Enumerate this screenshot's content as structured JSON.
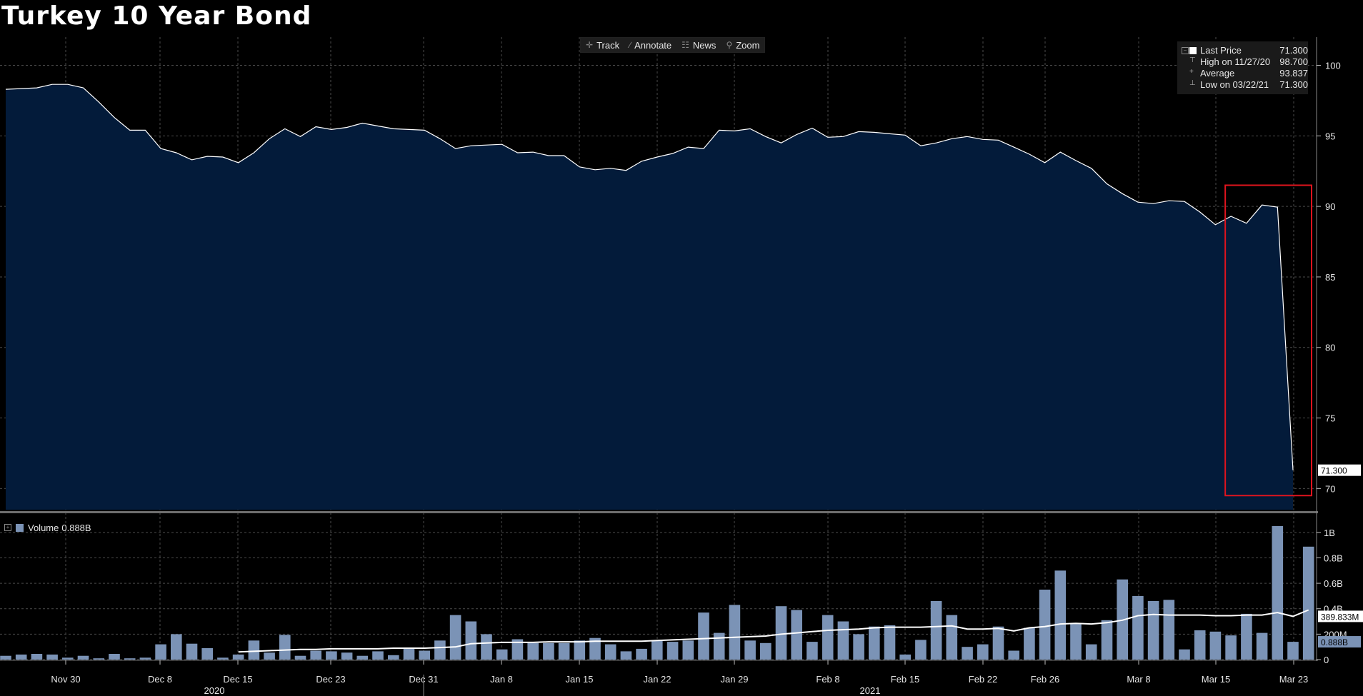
{
  "title": "Turkey 10 Year Bond",
  "toolbar": [
    {
      "label": "Track",
      "icon": "crosshair-icon",
      "glyph": "✛"
    },
    {
      "label": "Annotate",
      "icon": "pencil-icon",
      "glyph": "∕"
    },
    {
      "label": "News",
      "icon": "news-icon",
      "glyph": "☷"
    },
    {
      "label": "Zoom",
      "icon": "magnifier-icon",
      "glyph": "⚲"
    }
  ],
  "legend": {
    "last_price_label": "Last Price",
    "last_price_value": "71.300",
    "high_label": "High on 11/27/20",
    "high_value": "98.700",
    "average_label": "Average",
    "average_value": "93.837",
    "low_label": "Low on 03/22/21",
    "low_value": "71.300"
  },
  "volume_legend": {
    "label": "Volume",
    "value": "0.888B"
  },
  "colors": {
    "area_fill": "#031b3a",
    "line": "#ffffff",
    "volume_bar": "#7b93b6",
    "highlight_box": "#e0141e",
    "grid": "#4a4a4a"
  },
  "chart_data": [
    {
      "type": "area",
      "title": "Turkey 10 Year Bond",
      "series": [
        {
          "values": [
            98.3,
            98.35,
            98.4,
            98.65,
            98.65,
            98.4,
            97.4,
            96.3,
            95.4,
            95.4,
            94.1,
            93.8,
            93.3,
            93.55,
            93.5,
            93.1,
            93.8,
            94.8,
            95.5,
            94.95,
            95.65,
            95.45,
            95.6,
            95.9,
            95.7,
            95.5,
            95.45,
            95.4,
            94.8,
            94.1,
            94.3,
            94.35,
            94.4,
            93.8,
            93.85,
            93.6,
            93.6,
            92.8,
            92.6,
            92.7,
            92.55,
            93.2,
            93.5,
            93.75,
            94.2,
            94.1,
            95.4,
            95.35,
            95.5,
            94.95,
            94.5,
            95.1,
            95.55,
            94.9,
            94.95,
            95.3,
            95.25,
            95.15,
            95.05,
            94.3,
            94.5,
            94.8,
            94.95,
            94.75,
            94.7,
            94.2,
            93.7,
            93.1,
            93.85,
            93.25,
            92.7,
            91.6,
            90.9,
            90.3,
            90.2,
            90.4,
            90.35,
            89.6,
            88.7,
            89.3,
            88.8,
            90.1,
            89.95,
            71.3
          ]
        }
      ],
      "x_tick_labels": [
        "Nov 30",
        "Dec 8",
        "Dec 15",
        "Dec 23",
        "Dec 31",
        "Jan 8",
        "Jan 15",
        "Jan 22",
        "Jan 29",
        "Feb 8",
        "Feb 15",
        "Feb 22",
        "Feb 26",
        "Mar 8",
        "Mar 15",
        "Mar 23"
      ],
      "x_year_labels": [
        "2020",
        "2021"
      ],
      "y_ticks": [
        70,
        75,
        80,
        85,
        90,
        95,
        100
      ],
      "ylim": [
        68.5,
        102
      ],
      "last_value_label": "71.300",
      "highlight_range": {
        "from_index": 79,
        "to_index": 83,
        "ymin": 69.5,
        "ymax": 91.5
      },
      "legend_position": "top-right",
      "grid": true
    },
    {
      "type": "bar",
      "title": "Volume",
      "series": [
        {
          "name": "Volume",
          "values": [
            0.03,
            0.04,
            0.045,
            0.04,
            0.015,
            0.03,
            0.01,
            0.045,
            0.01,
            0.015,
            0.12,
            0.2,
            0.125,
            0.09,
            0.015,
            0.04,
            0.15,
            0.055,
            0.195,
            0.03,
            0.07,
            0.065,
            0.055,
            0.03,
            0.065,
            0.035,
            0.085,
            0.07,
            0.15,
            0.35,
            0.3,
            0.2,
            0.08,
            0.16,
            0.13,
            0.13,
            0.13,
            0.15,
            0.17,
            0.12,
            0.065,
            0.085,
            0.15,
            0.14,
            0.15,
            0.37,
            0.21,
            0.43,
            0.15,
            0.13,
            0.42,
            0.39,
            0.14,
            0.35,
            0.3,
            0.2,
            0.26,
            0.27,
            0.04,
            0.155,
            0.46,
            0.35,
            0.1,
            0.12,
            0.26,
            0.07,
            0.25,
            0.55,
            0.7,
            0.28,
            0.12,
            0.31,
            0.63,
            0.5,
            0.46,
            0.47,
            0.08,
            0.23,
            0.22,
            0.19,
            0.36,
            0.21,
            1.05,
            0.14,
            0.888
          ]
        },
        {
          "name": "Moving average",
          "values": [
            null,
            null,
            null,
            null,
            null,
            null,
            null,
            null,
            null,
            null,
            null,
            null,
            null,
            null,
            null,
            0.06,
            0.065,
            0.07,
            0.075,
            0.08,
            0.08,
            0.085,
            0.085,
            0.085,
            0.085,
            0.09,
            0.09,
            0.09,
            0.095,
            0.1,
            0.125,
            0.13,
            0.135,
            0.135,
            0.135,
            0.14,
            0.14,
            0.14,
            0.145,
            0.145,
            0.145,
            0.145,
            0.15,
            0.155,
            0.16,
            0.165,
            0.17,
            0.175,
            0.18,
            0.185,
            0.2,
            0.21,
            0.22,
            0.23,
            0.235,
            0.24,
            0.25,
            0.255,
            0.255,
            0.255,
            0.26,
            0.265,
            0.24,
            0.24,
            0.245,
            0.225,
            0.25,
            0.26,
            0.28,
            0.285,
            0.28,
            0.29,
            0.31,
            0.345,
            0.355,
            0.35,
            0.35,
            0.35,
            0.345,
            0.345,
            0.35,
            0.35,
            0.37,
            0.34,
            0.39
          ]
        }
      ],
      "y_tick_labels": [
        "0",
        "200M",
        "0.4B",
        "0.6B",
        "0.8B",
        "1B"
      ],
      "y_ticks": [
        0,
        0.2,
        0.4,
        0.6,
        0.8,
        1.0
      ],
      "ylim": [
        0,
        1.1
      ],
      "last_value_label": "0.888B",
      "average_value_label": "389.833M"
    }
  ]
}
